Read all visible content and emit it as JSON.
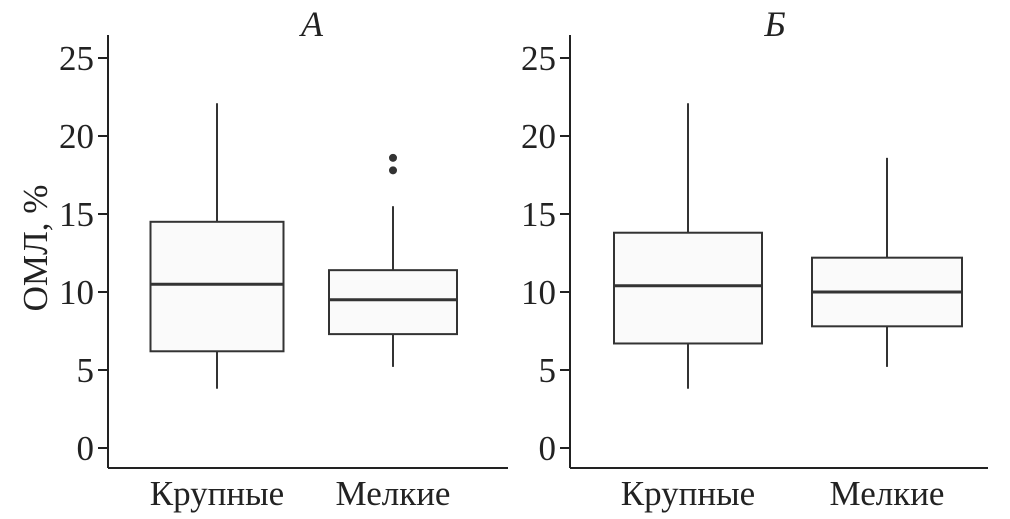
{
  "y_axis_title": "ОМЛ, %",
  "chart_data": [
    {
      "type": "box",
      "title": "А",
      "ylabel": "ОМЛ, %",
      "ylim": [
        0,
        25
      ],
      "yticks": [
        0,
        5,
        10,
        15,
        20,
        25
      ],
      "categories": [
        "Крупные",
        "Мелкие"
      ],
      "boxes": [
        {
          "category": "Крупные",
          "whisker_low": 3.8,
          "q1": 6.2,
          "median": 10.5,
          "q3": 14.5,
          "whisker_high": 22.1,
          "outliers": []
        },
        {
          "category": "Мелкие",
          "whisker_low": 5.2,
          "q1": 7.3,
          "median": 9.5,
          "q3": 11.4,
          "whisker_high": 15.5,
          "outliers": [
            17.8,
            18.6
          ]
        }
      ]
    },
    {
      "type": "box",
      "title": "Б",
      "ylabel": "",
      "ylim": [
        0,
        25
      ],
      "yticks": [
        0,
        5,
        10,
        15,
        20,
        25
      ],
      "categories": [
        "Крупные",
        "Мелкие"
      ],
      "boxes": [
        {
          "category": "Крупные",
          "whisker_low": 3.8,
          "q1": 6.7,
          "median": 10.4,
          "q3": 13.8,
          "whisker_high": 22.1,
          "outliers": []
        },
        {
          "category": "Мелкие",
          "whisker_low": 5.2,
          "q1": 7.8,
          "median": 10.0,
          "q3": 12.2,
          "whisker_high": 18.6,
          "outliers": []
        }
      ]
    }
  ]
}
